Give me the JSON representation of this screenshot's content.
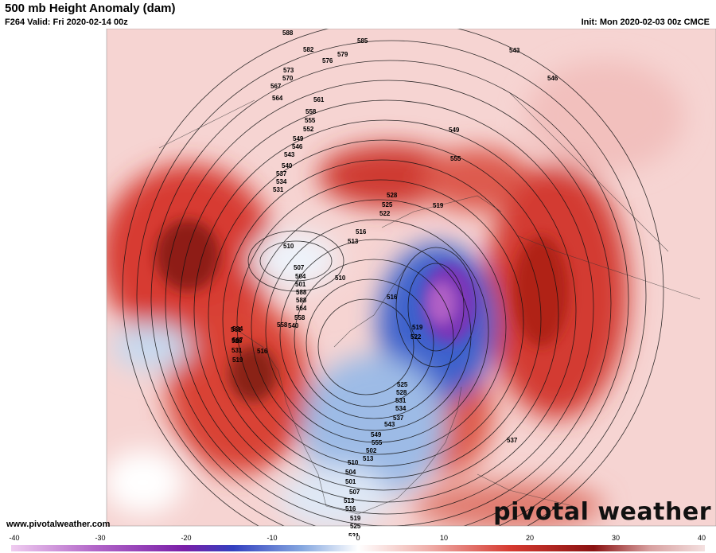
{
  "header": {
    "title": "500 mb Height Anomaly (dam)",
    "valid": "F264 Valid: Fri 2020-02-14 00z",
    "init": "Init: Mon 2020-02-03 00z CMCE"
  },
  "footer": {
    "site": "www.pivotalweather.com",
    "brand": "pivotal weather"
  },
  "colorbar": {
    "ticks": [
      "-40",
      "-30",
      "-20",
      "-10",
      "0",
      "10",
      "20",
      "30",
      "40"
    ],
    "min": -40,
    "max": 40,
    "colors": {
      "negative_strong": "#b266c8",
      "negative_mid": "#2f55c8",
      "negative_light": "#b9cfee",
      "neutral": "#ffffff",
      "positive_light": "#f2c4c4",
      "positive_mid": "#d63a30",
      "positive_strong": "#8a1212"
    }
  },
  "contour_labels": [
    "588",
    "585",
    "582",
    "579",
    "576",
    "573",
    "570",
    "567",
    "564",
    "561",
    "558",
    "555",
    "552",
    "549",
    "546",
    "543",
    "540",
    "537",
    "534",
    "531",
    "528",
    "525",
    "522",
    "519",
    "516",
    "513",
    "510",
    "507",
    "504",
    "501",
    "588",
    "588",
    "564",
    "558",
    "540",
    "534",
    "528",
    "531",
    "519",
    "516",
    "510",
    "516",
    "519",
    "522",
    "525",
    "528",
    "531",
    "534",
    "537",
    "543",
    "549",
    "555",
    "502",
    "513",
    "510",
    "504",
    "501",
    "507",
    "513",
    "516",
    "519",
    "525",
    "531",
    "537",
    "543",
    "546",
    "549",
    "555",
    "558",
    "561",
    "567",
    "573",
    "576",
    "579",
    "582",
    "588",
    "540",
    "537",
    "543",
    "549",
    "555"
  ]
}
